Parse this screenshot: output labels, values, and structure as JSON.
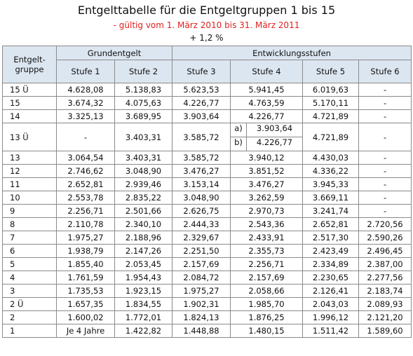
{
  "title": "Entgelttabelle für die Entgeltgruppen 1 bis 15",
  "subtitle": "- gültig vom 1. März 2010 bis 31. März 2011",
  "increase": "+ 1,2 %",
  "headers": {
    "entgeltgruppe": "Entgelt-\ngruppe",
    "grundentgelt": "Grundentgelt",
    "entwicklungsstufen": "Entwicklungsstufen",
    "stufen": [
      "Stufe 1",
      "Stufe 2",
      "Stufe 3",
      "Stufe 4",
      "Stufe 5",
      "Stufe 6"
    ]
  },
  "rows_top": [
    {
      "group": "15 Ü",
      "values": [
        "4.628,08",
        "5.138,83",
        "5.623,53",
        "5.941,45",
        "6.019,63",
        "-"
      ]
    },
    {
      "group": "15",
      "values": [
        "3.674,32",
        "4.075,63",
        "4.226,77",
        "4.763,59",
        "5.170,11",
        "-"
      ]
    },
    {
      "group": "14",
      "values": [
        "3.325,13",
        "3.689,95",
        "3.903,64",
        "4.226,77",
        "4.721,89",
        "-"
      ]
    }
  ],
  "row_13u": {
    "group": "13 Ü",
    "s1": "-",
    "s2": "3.403,31",
    "s3": "3.585,72",
    "s4a_label": "a)",
    "s4a": "3.903,64",
    "s4b_label": "b)",
    "s4b": "4.226,77",
    "s5": "4.721,89",
    "s6": "-"
  },
  "rows_bottom": [
    {
      "group": "13",
      "values": [
        "3.064,54",
        "3.403,31",
        "3.585,72",
        "3.940,12",
        "4.430,03",
        "-"
      ]
    },
    {
      "group": "12",
      "values": [
        "2.746,62",
        "3.048,90",
        "3.476,27",
        "3.851,52",
        "4.336,22",
        "-"
      ]
    },
    {
      "group": "11",
      "values": [
        "2.652,81",
        "2.939,46",
        "3.153,14",
        "3.476,27",
        "3.945,33",
        "-"
      ]
    },
    {
      "group": "10",
      "values": [
        "2.553,78",
        "2.835,22",
        "3.048,90",
        "3.262,59",
        "3.669,11",
        "-"
      ]
    },
    {
      "group": "9",
      "values": [
        "2.256,71",
        "2.501,66",
        "2.626,75",
        "2.970,73",
        "3.241,74",
        "-"
      ]
    },
    {
      "group": "8",
      "values": [
        "2.110,78",
        "2.340,10",
        "2.444,33",
        "2.543,36",
        "2.652,81",
        "2.720,56"
      ]
    },
    {
      "group": "7",
      "values": [
        "1.975,27",
        "2.188,96",
        "2.329,67",
        "2.433,91",
        "2.517,30",
        "2.590,26"
      ]
    },
    {
      "group": "6",
      "values": [
        "1.938,79",
        "2.147,26",
        "2.251,50",
        "2.355,73",
        "2.423,49",
        "2.496,45"
      ]
    },
    {
      "group": "5",
      "values": [
        "1.855,40",
        "2.053,45",
        "2.157,69",
        "2.256,71",
        "2.334,89",
        "2.387,00"
      ]
    },
    {
      "group": "4",
      "values": [
        "1.761,59",
        "1.954,43",
        "2.084,72",
        "2.157,69",
        "2.230,65",
        "2.277,56"
      ]
    },
    {
      "group": "3",
      "values": [
        "1.735,53",
        "1.923,15",
        "1.975,27",
        "2.058,66",
        "2.126,41",
        "2.183,74"
      ]
    },
    {
      "group": "2 Ü",
      "values": [
        "1.657,35",
        "1.834,55",
        "1.902,31",
        "1.985,70",
        "2.043,03",
        "2.089,93"
      ]
    },
    {
      "group": "2",
      "values": [
        "1.600,02",
        "1.772,01",
        "1.824,13",
        "1.876,25",
        "1.996,12",
        "2.121,20"
      ]
    },
    {
      "group": "1",
      "values": [
        "Je 4 Jahre",
        "1.422,82",
        "1.448,88",
        "1.480,15",
        "1.511,42",
        "1.589,60"
      ]
    }
  ]
}
